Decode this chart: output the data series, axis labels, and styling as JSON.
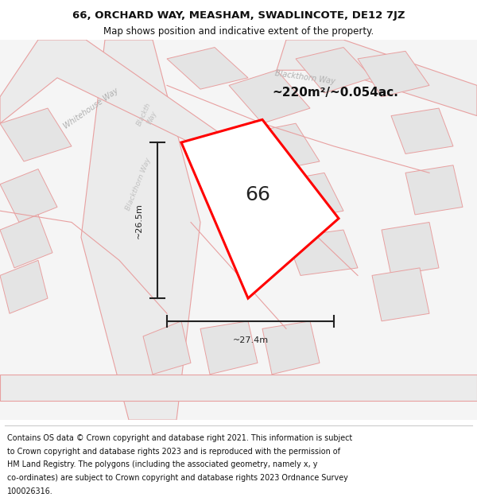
{
  "title": "66, ORCHARD WAY, MEASHAM, SWADLINCOTE, DE12 7JZ",
  "subtitle": "Map shows position and indicative extent of the property.",
  "area_text": "~220m²/~0.054ac.",
  "number_label": "66",
  "dim_vertical": "~26.5m",
  "dim_horizontal": "~27.4m",
  "footer_lines": [
    "Contains OS data © Crown copyright and database right 2021. This information is subject",
    "to Crown copyright and database rights 2023 and is reproduced with the permission of",
    "HM Land Registry. The polygons (including the associated geometry, namely x, y",
    "co-ordinates) are subject to Crown copyright and database rights 2023 Ordnance Survey",
    "100026316."
  ],
  "bg_color": "#f5f5f5",
  "road_stroke": "#e8a0a0",
  "property_stroke": "#ff0000",
  "dim_line_color": "#222222",
  "title_color": "#111111",
  "footer_color": "#111111",
  "figsize": [
    6.0,
    6.25
  ],
  "dpi": 100
}
